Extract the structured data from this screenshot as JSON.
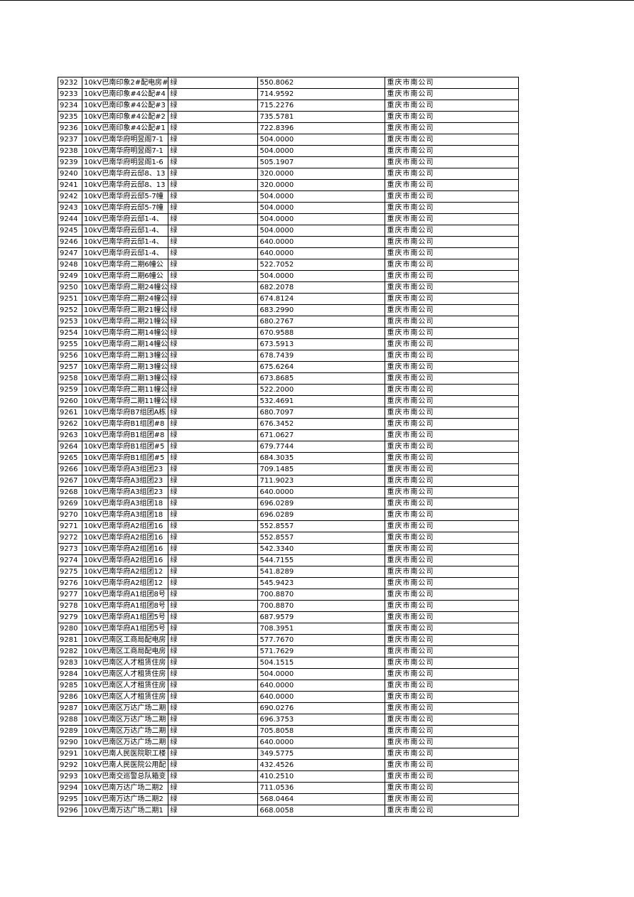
{
  "table": {
    "rows": [
      [
        "9232",
        "10kV巴南印象2#配电房#",
        "绿",
        "550.8062",
        "重庆市南公司"
      ],
      [
        "9233",
        "10kV巴南印象#4公配#4",
        "绿",
        "714.9592",
        "重庆市南公司"
      ],
      [
        "9234",
        "10kV巴南印象#4公配#3",
        "绿",
        "715.2276",
        "重庆市南公司"
      ],
      [
        "9235",
        "10kV巴南印象#4公配#2",
        "绿",
        "735.5781",
        "重庆市南公司"
      ],
      [
        "9236",
        "10kV巴南印象#4公配#1",
        "绿",
        "722.8396",
        "重庆市南公司"
      ],
      [
        "9237",
        "10kV巴南华府明昱阁7-1",
        "绿",
        "504.0000",
        "重庆市南公司"
      ],
      [
        "9238",
        "10kV巴南华府明昱阁7-1",
        "绿",
        "504.0000",
        "重庆市南公司"
      ],
      [
        "9239",
        "10kV巴南华府明昱阁1-6",
        "绿",
        "505.1907",
        "重庆市南公司"
      ],
      [
        "9240",
        "10kV巴南华府云邸8、13",
        "绿",
        "320.0000",
        "重庆市南公司"
      ],
      [
        "9241",
        "10kV巴南华府云邸8、13",
        "绿",
        "320.0000",
        "重庆市南公司"
      ],
      [
        "9242",
        "10kV巴南华府云邸5-7幢",
        "绿",
        "504.0000",
        "重庆市南公司"
      ],
      [
        "9243",
        "10kV巴南华府云邸5-7幢",
        "绿",
        "504.0000",
        "重庆市南公司"
      ],
      [
        "9244",
        "10kV巴南华府云邸1-4、",
        "绿",
        "504.0000",
        "重庆市南公司"
      ],
      [
        "9245",
        "10kV巴南华府云邸1-4、",
        "绿",
        "504.0000",
        "重庆市南公司"
      ],
      [
        "9246",
        "10kV巴南华府云邸1-4、",
        "绿",
        "640.0000",
        "重庆市南公司"
      ],
      [
        "9247",
        "10kV巴南华府云邸1-4、",
        "绿",
        "640.0000",
        "重庆市南公司"
      ],
      [
        "9248",
        "10kV巴南华府二期6幢公",
        "绿",
        "522.7052",
        "重庆市南公司"
      ],
      [
        "9249",
        "10kV巴南华府二期6幢公",
        "绿",
        "504.0000",
        "重庆市南公司"
      ],
      [
        "9250",
        "10kV巴南华府二期24幢公",
        "绿",
        "682.2078",
        "重庆市南公司"
      ],
      [
        "9251",
        "10kV巴南华府二期24幢公",
        "绿",
        "674.8124",
        "重庆市南公司"
      ],
      [
        "9252",
        "10kV巴南华府二期21幢公",
        "绿",
        "683.2990",
        "重庆市南公司"
      ],
      [
        "9253",
        "10kV巴南华府二期21幢公",
        "绿",
        "680.2767",
        "重庆市南公司"
      ],
      [
        "9254",
        "10kV巴南华府二期14幢公",
        "绿",
        "670.9588",
        "重庆市南公司"
      ],
      [
        "9255",
        "10kV巴南华府二期14幢公",
        "绿",
        "673.5913",
        "重庆市南公司"
      ],
      [
        "9256",
        "10kV巴南华府二期13幢公",
        "绿",
        "678.7439",
        "重庆市南公司"
      ],
      [
        "9257",
        "10kV巴南华府二期13幢公",
        "绿",
        "675.6264",
        "重庆市南公司"
      ],
      [
        "9258",
        "10kV巴南华府二期13幢公",
        "绿",
        "673.8685",
        "重庆市南公司"
      ],
      [
        "9259",
        "10kV巴南华府二期11幢公",
        "绿",
        "522.2000",
        "重庆市南公司"
      ],
      [
        "9260",
        "10kV巴南华府二期11幢公",
        "绿",
        "532.4691",
        "重庆市南公司"
      ],
      [
        "9261",
        "10kV巴南华府B7组团A栋",
        "绿",
        "680.7097",
        "重庆市南公司"
      ],
      [
        "9262",
        "10kV巴南华府B1组团#8",
        "绿",
        "676.3452",
        "重庆市南公司"
      ],
      [
        "9263",
        "10kV巴南华府B1组团#8",
        "绿",
        "671.0627",
        "重庆市南公司"
      ],
      [
        "9264",
        "10kV巴南华府B1组团#5",
        "绿",
        "679.7744",
        "重庆市南公司"
      ],
      [
        "9265",
        "10kV巴南华府B1组团#5",
        "绿",
        "684.3035",
        "重庆市南公司"
      ],
      [
        "9266",
        "10kV巴南华府A3组团23",
        "绿",
        "709.1485",
        "重庆市南公司"
      ],
      [
        "9267",
        "10kV巴南华府A3组团23",
        "绿",
        "711.9023",
        "重庆市南公司"
      ],
      [
        "9268",
        "10kV巴南华府A3组团23",
        "绿",
        "640.0000",
        "重庆市南公司"
      ],
      [
        "9269",
        "10kV巴南华府A3组团18",
        "绿",
        "696.0289",
        "重庆市南公司"
      ],
      [
        "9270",
        "10kV巴南华府A3组团18",
        "绿",
        "696.0289",
        "重庆市南公司"
      ],
      [
        "9271",
        "10kV巴南华府A2组团16",
        "绿",
        "552.8557",
        "重庆市南公司"
      ],
      [
        "9272",
        "10kV巴南华府A2组团16",
        "绿",
        "552.8557",
        "重庆市南公司"
      ],
      [
        "9273",
        "10kV巴南华府A2组团16",
        "绿",
        "542.3340",
        "重庆市南公司"
      ],
      [
        "9274",
        "10kV巴南华府A2组团16",
        "绿",
        "544.7155",
        "重庆市南公司"
      ],
      [
        "9275",
        "10kV巴南华府A2组团12",
        "绿",
        "541.8289",
        "重庆市南公司"
      ],
      [
        "9276",
        "10kV巴南华府A2组团12",
        "绿",
        "545.9423",
        "重庆市南公司"
      ],
      [
        "9277",
        "10kV巴南华府A1组团8号",
        "绿",
        "700.8870",
        "重庆市南公司"
      ],
      [
        "9278",
        "10kV巴南华府A1组团8号",
        "绿",
        "700.8870",
        "重庆市南公司"
      ],
      [
        "9279",
        "10kV巴南华府A1组团5号",
        "绿",
        "687.9579",
        "重庆市南公司"
      ],
      [
        "9280",
        "10kV巴南华府A1组团5号",
        "绿",
        "708.3951",
        "重庆市南公司"
      ],
      [
        "9281",
        "10kV巴南区工商局配电房",
        "绿",
        "577.7670",
        "重庆市南公司"
      ],
      [
        "9282",
        "10kV巴南区工商局配电房",
        "绿",
        "571.7629",
        "重庆市南公司"
      ],
      [
        "9283",
        "10kV巴南区人才租赁住房",
        "绿",
        "504.1515",
        "重庆市南公司"
      ],
      [
        "9284",
        "10kV巴南区人才租赁住房",
        "绿",
        "504.0000",
        "重庆市南公司"
      ],
      [
        "9285",
        "10kV巴南区人才租赁住房",
        "绿",
        "640.0000",
        "重庆市南公司"
      ],
      [
        "9286",
        "10kV巴南区人才租赁住房",
        "绿",
        "640.0000",
        "重庆市南公司"
      ],
      [
        "9287",
        "10kV巴南区万达广场二期",
        "绿",
        "690.0276",
        "重庆市南公司"
      ],
      [
        "9288",
        "10kV巴南区万达广场二期",
        "绿",
        "696.3753",
        "重庆市南公司"
      ],
      [
        "9289",
        "10kV巴南区万达广场二期",
        "绿",
        "705.8058",
        "重庆市南公司"
      ],
      [
        "9290",
        "10kV巴南区万达广场二期",
        "绿",
        "640.0000",
        "重庆市南公司"
      ],
      [
        "9291",
        "10kV巴南人民医院职工楼",
        "绿",
        "349.5775",
        "重庆市南公司"
      ],
      [
        "9292",
        "10kV巴南人民医院公用配",
        "绿",
        "432.4526",
        "重庆市南公司"
      ],
      [
        "9293",
        "10kV巴南交巡警总队箱变",
        "绿",
        "410.2510",
        "重庆市南公司"
      ],
      [
        "9294",
        "10kV巴南万达广场二期2",
        "绿",
        "711.0536",
        "重庆市南公司"
      ],
      [
        "9295",
        "10kV巴南万达广场二期2",
        "绿",
        "568.0464",
        "重庆市南公司"
      ],
      [
        "9296",
        "10kV巴南万达广场二期1",
        "绿",
        "668.0058",
        "重庆市南公司"
      ]
    ]
  }
}
